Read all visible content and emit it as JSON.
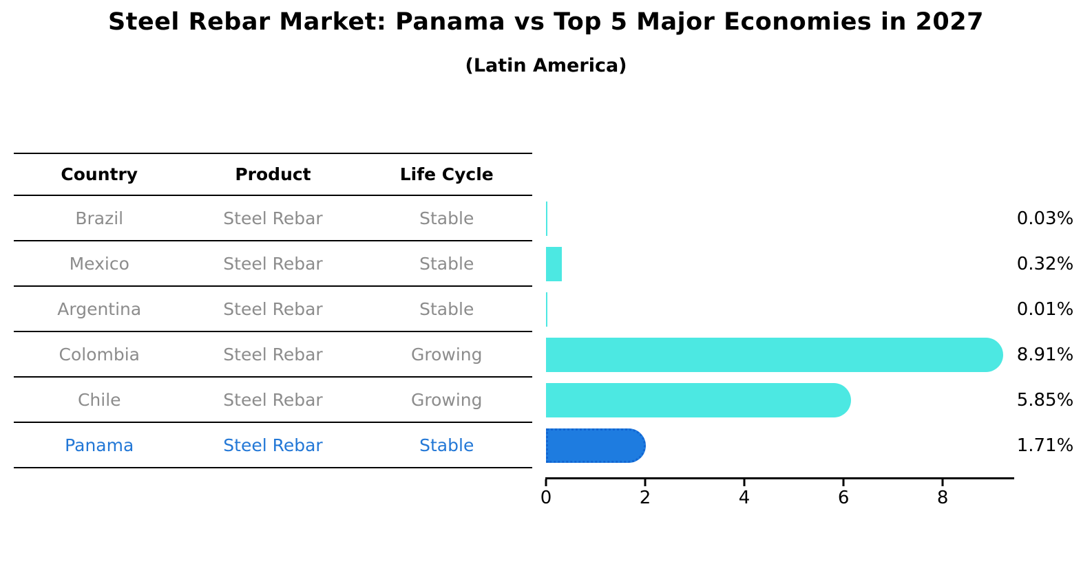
{
  "header": {
    "title": "Steel Rebar Market: Panama vs Top 5 Major Economies in 2027",
    "subtitle": "(Latin America)"
  },
  "table": {
    "headers": [
      "Country",
      "Product",
      "Life Cycle"
    ],
    "rows": [
      {
        "country": "Brazil",
        "product": "Steel Rebar",
        "life_cycle": "Stable"
      },
      {
        "country": "Mexico",
        "product": "Steel Rebar",
        "life_cycle": "Stable"
      },
      {
        "country": "Argentina",
        "product": "Steel Rebar",
        "life_cycle": "Stable"
      },
      {
        "country": "Colombia",
        "product": "Steel Rebar",
        "life_cycle": "Growing"
      },
      {
        "country": "Chile",
        "product": "Steel Rebar",
        "life_cycle": "Growing"
      },
      {
        "country": "Panama",
        "product": "Steel Rebar",
        "life_cycle": "Stable"
      }
    ]
  },
  "chart_data": {
    "type": "bar",
    "orientation": "horizontal",
    "title": "Steel Rebar Market: Panama vs Top 5 Major Economies in 2027",
    "subtitle": "(Latin America)",
    "categories": [
      "Brazil",
      "Mexico",
      "Argentina",
      "Colombia",
      "Chile",
      "Panama"
    ],
    "values": [
      0.03,
      0.32,
      0.01,
      8.91,
      5.85,
      1.71
    ],
    "value_labels": [
      "0.03%",
      "0.32%",
      "0.01%",
      "8.91%",
      "5.85%",
      "1.71%"
    ],
    "xlim": [
      0,
      9.4
    ],
    "x_ticks": [
      0,
      2,
      4,
      6,
      8
    ],
    "grid": false,
    "legend": false,
    "highlight_index": 5,
    "highlight_category": "Panama",
    "colors": {
      "bar": "#4CE8E2",
      "highlight_bar": "#1E7CE0",
      "highlight_border": "#1265D2",
      "highlight_text": "#2277D6",
      "muted_text": "#8C8C8C"
    }
  }
}
